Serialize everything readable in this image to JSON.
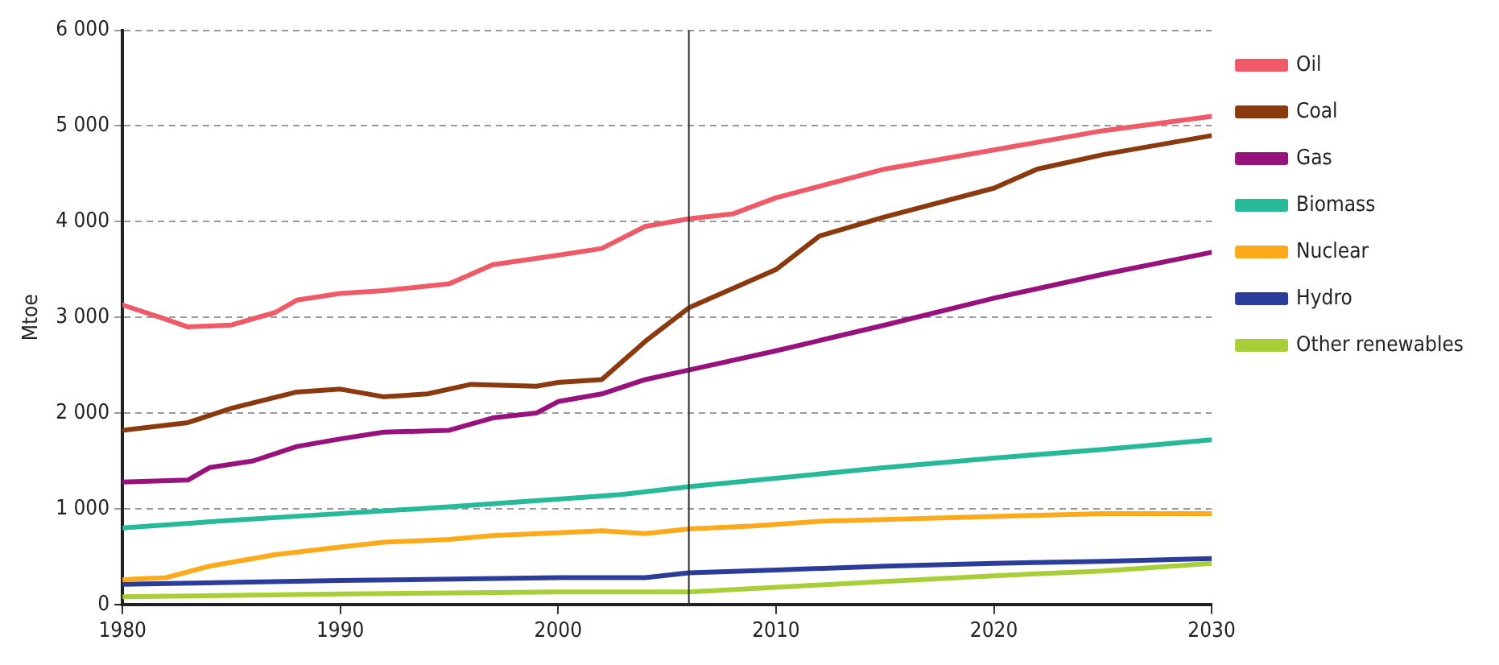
{
  "chart_data": {
    "type": "line",
    "ylabel": "Mtoe",
    "xlim": [
      1980,
      2030
    ],
    "xticks": [
      1980,
      1990,
      2000,
      2010,
      2020,
      2030
    ],
    "ylim": [
      0,
      6000
    ],
    "yticks": [
      {
        "value": 0,
        "label": "0"
      },
      {
        "value": 1000,
        "label": "1 000"
      },
      {
        "value": 2000,
        "label": "2 000"
      },
      {
        "value": 3000,
        "label": "3 000"
      },
      {
        "value": 4000,
        "label": "4 000"
      },
      {
        "value": 5000,
        "label": "5 000"
      },
      {
        "value": 6000,
        "label": "6 000"
      }
    ],
    "grid": "y",
    "legend": "right",
    "marker": "none",
    "line_style": "solid",
    "ref_lines": [
      {
        "axis": "x",
        "value": 2006,
        "color": "#333333"
      }
    ],
    "series": [
      {
        "name": "Oil",
        "color": "#ef5a68",
        "x": [
          1980,
          1982,
          1983,
          1985,
          1987,
          1988,
          1990,
          1992,
          1995,
          1997,
          2000,
          2002,
          2004,
          2006,
          2008,
          2010,
          2015,
          2020,
          2025,
          2030
        ],
        "values": [
          3130,
          2980,
          2900,
          2920,
          3050,
          3180,
          3250,
          3280,
          3350,
          3550,
          3650,
          3720,
          3950,
          4030,
          4080,
          4250,
          4550,
          4750,
          4950,
          5100
        ]
      },
      {
        "name": "Coal",
        "color": "#8b3a0f",
        "x": [
          1980,
          1983,
          1985,
          1988,
          1990,
          1992,
          1994,
          1996,
          1999,
          2000,
          2002,
          2004,
          2006,
          2008,
          2010,
          2012,
          2015,
          2020,
          2022,
          2025,
          2030
        ],
        "values": [
          1820,
          1900,
          2050,
          2220,
          2250,
          2170,
          2200,
          2300,
          2280,
          2320,
          2350,
          2750,
          3100,
          3300,
          3500,
          3850,
          4050,
          4350,
          4550,
          4700,
          4900
        ]
      },
      {
        "name": "Gas",
        "color": "#98127e",
        "x": [
          1980,
          1983,
          1984,
          1986,
          1988,
          1990,
          1992,
          1995,
          1997,
          1999,
          2000,
          2002,
          2004,
          2006,
          2010,
          2015,
          2020,
          2025,
          2030
        ],
        "values": [
          1280,
          1300,
          1430,
          1500,
          1650,
          1730,
          1800,
          1820,
          1950,
          2000,
          2120,
          2200,
          2350,
          2450,
          2650,
          2920,
          3200,
          3450,
          3680
        ]
      },
      {
        "name": "Biomass",
        "color": "#26b99a",
        "x": [
          1980,
          1985,
          1990,
          1995,
          2000,
          2003,
          2006,
          2010,
          2015,
          2020,
          2025,
          2030
        ],
        "values": [
          800,
          880,
          950,
          1020,
          1100,
          1150,
          1230,
          1320,
          1430,
          1530,
          1620,
          1720
        ]
      },
      {
        "name": "Nuclear",
        "color": "#fbaa1c",
        "x": [
          1980,
          1982,
          1984,
          1987,
          1990,
          1992,
          1995,
          1997,
          2000,
          2002,
          2004,
          2006,
          2009,
          2012,
          2020,
          2025,
          2030
        ],
        "values": [
          260,
          280,
          400,
          520,
          600,
          650,
          680,
          720,
          750,
          770,
          740,
          790,
          820,
          870,
          920,
          950,
          950
        ]
      },
      {
        "name": "Hydro",
        "color": "#2b3c9a",
        "x": [
          1980,
          1990,
          2000,
          2004,
          2006,
          2010,
          2015,
          2020,
          2025,
          2030
        ],
        "values": [
          210,
          250,
          280,
          280,
          330,
          360,
          400,
          430,
          450,
          480
        ]
      },
      {
        "name": "Other renewables",
        "color": "#a8cf38",
        "x": [
          1980,
          1990,
          2000,
          2006,
          2010,
          2015,
          2020,
          2025,
          2030
        ],
        "values": [
          80,
          110,
          130,
          130,
          180,
          240,
          300,
          350,
          430
        ]
      }
    ]
  }
}
